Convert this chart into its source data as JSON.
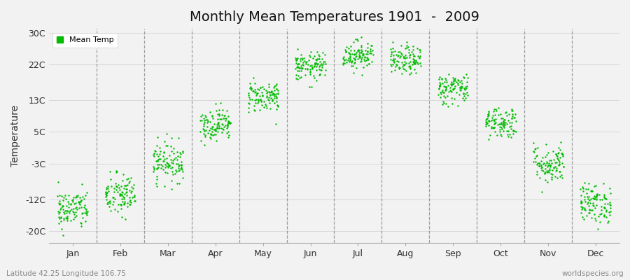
{
  "title": "Monthly Mean Temperatures 1901  -  2009",
  "ylabel": "Temperature",
  "xlabel_months": [
    "Jan",
    "Feb",
    "Mar",
    "Apr",
    "May",
    "Jun",
    "Jul",
    "Aug",
    "Sep",
    "Oct",
    "Nov",
    "Dec"
  ],
  "yticks": [
    -20,
    -12,
    -3,
    5,
    13,
    22,
    30
  ],
  "ytick_labels": [
    "-20C",
    "-12C",
    "-3C",
    "5C",
    "13C",
    "22C",
    "30C"
  ],
  "ylim": [
    -23,
    31
  ],
  "xlim": [
    0.0,
    12.0
  ],
  "background_color": "#f2f2f2",
  "plot_bg_color": "#f2f2f2",
  "dot_color": "#00bb00",
  "dot_size": 3,
  "legend_label": "Mean Temp",
  "bottom_left_text": "Latitude 42.25 Longitude 106.75",
  "bottom_right_text": "worldspecies.org",
  "monthly_mean_temps": [
    -14.5,
    -11.0,
    -2.5,
    7.0,
    14.0,
    21.5,
    24.5,
    23.0,
    16.0,
    7.5,
    -3.0,
    -13.0
  ],
  "monthly_std_temps": [
    2.5,
    2.8,
    2.5,
    2.0,
    2.0,
    1.8,
    1.8,
    1.8,
    2.0,
    2.0,
    2.5,
    2.5
  ],
  "n_years": 109,
  "seed": 42
}
